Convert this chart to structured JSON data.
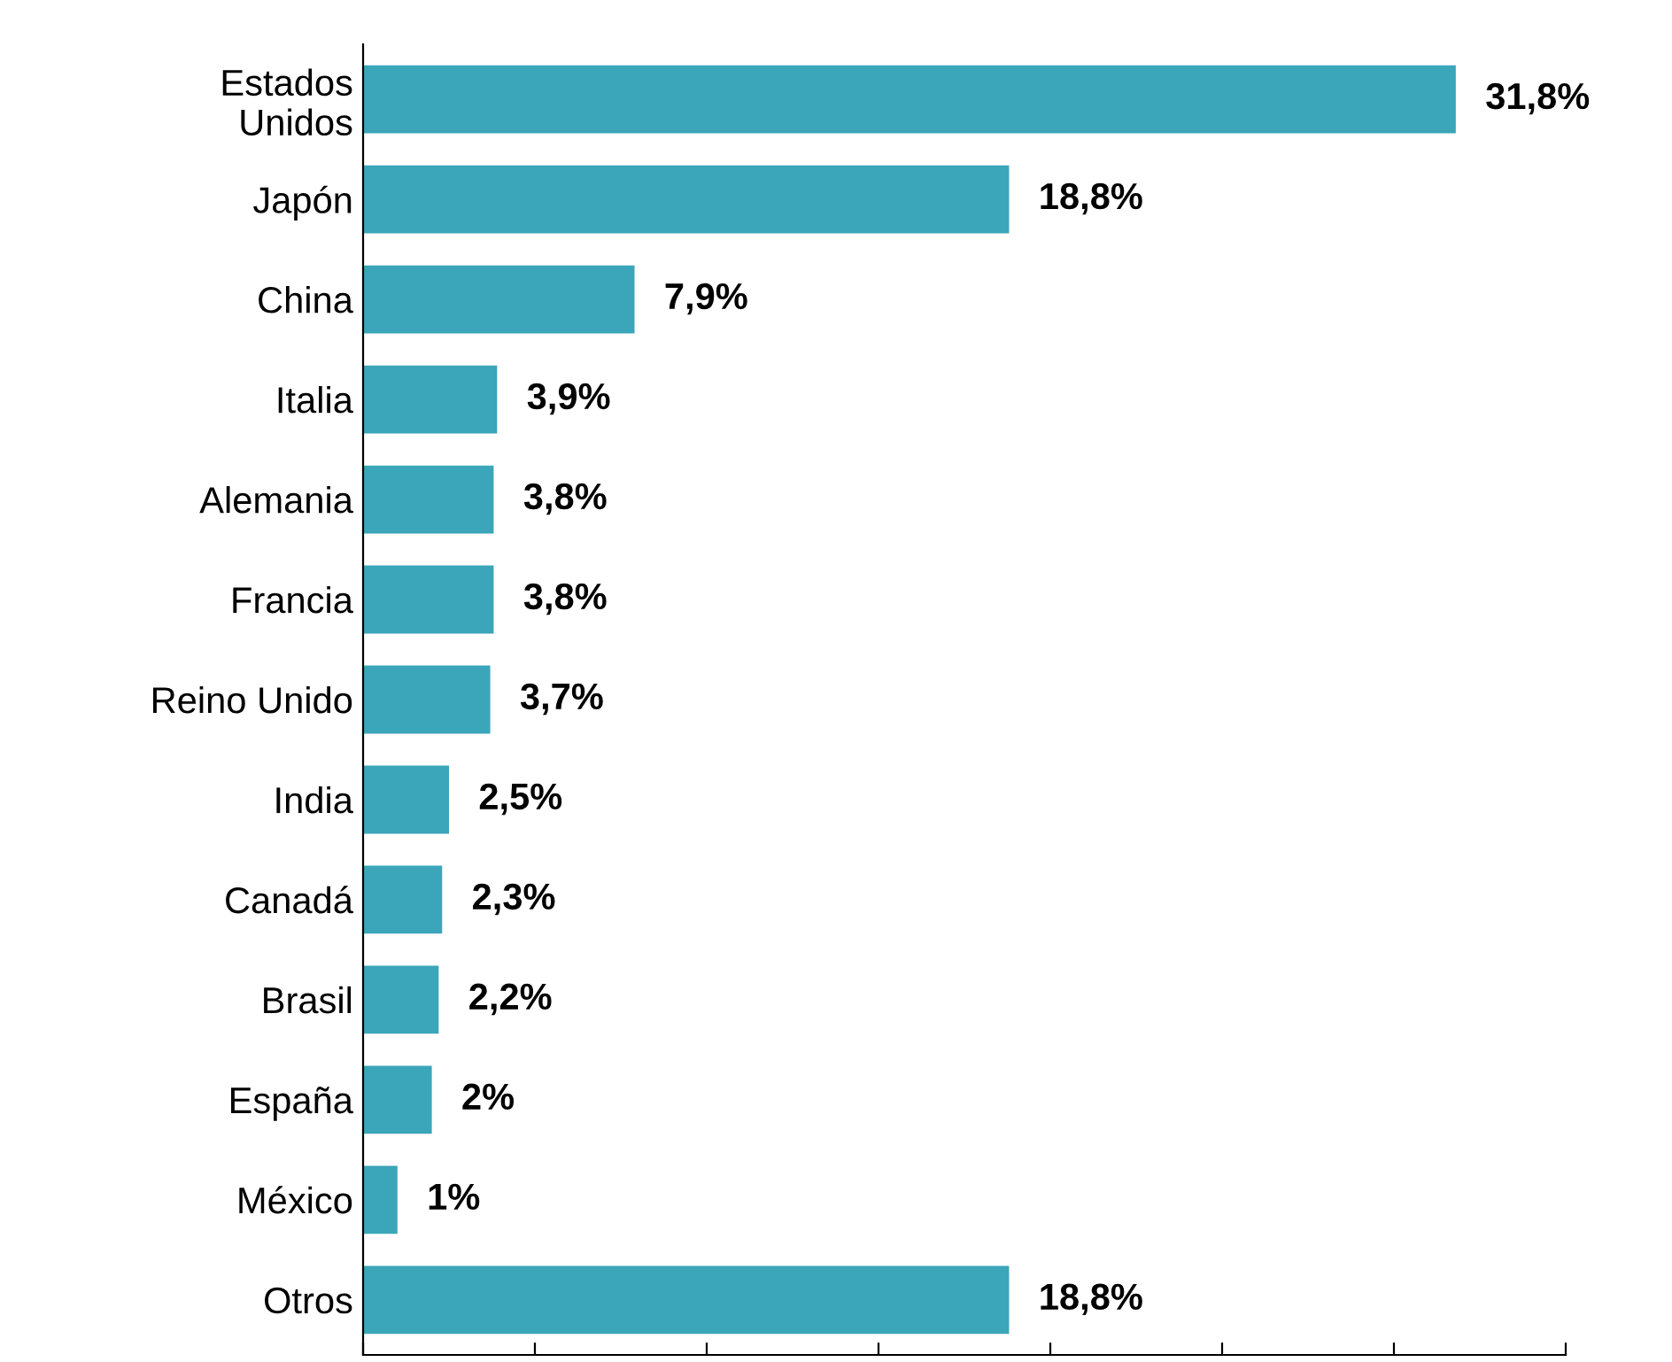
{
  "chart_data": {
    "type": "bar",
    "orientation": "horizontal",
    "categories": [
      "Estados\nUnidos",
      "Japón",
      "China",
      "Italia",
      "Alemania",
      "Francia",
      "Reino Unido",
      "India",
      "Canadá",
      "Brasil",
      "España",
      "México",
      "Otros"
    ],
    "values": [
      31.8,
      18.8,
      7.9,
      3.9,
      3.8,
      3.8,
      3.7,
      2.5,
      2.3,
      2.2,
      2,
      1,
      18.8
    ],
    "value_labels": [
      "31,8%",
      "18,8%",
      "7,9%",
      "3,9%",
      "3,8%",
      "3,8%",
      "3,7%",
      "2,5%",
      "2,3%",
      "2,2%",
      "2%",
      "1%",
      "18,8%"
    ],
    "color": "#3ba5ba",
    "xlim": [
      0,
      35
    ],
    "xticks": [
      {
        "value": 0,
        "label": null
      },
      {
        "value": 5,
        "label": null
      },
      {
        "value": 10,
        "label": null
      },
      {
        "value": 15,
        "label": null
      },
      {
        "value": 20,
        "label": null
      },
      {
        "value": 25,
        "label": null
      },
      {
        "value": 30,
        "label": null
      },
      {
        "value": 35,
        "label": null
      }
    ],
    "grid": false,
    "legend": false
  }
}
